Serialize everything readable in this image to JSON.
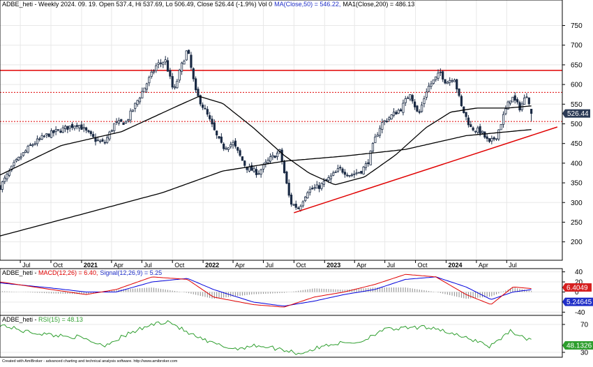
{
  "chart_data": {
    "type": "candlestick",
    "price_panel": {
      "header": {
        "ticker": "ADBE_heti - Weekly 2024. 09. 19. Open 537.4, Hi 537.69, Lo 506.49, Close 526.44 (-1.9%) Vol 0",
        "ma50": "MA(Close,50) = 546.22,",
        "ma200": "MA1(Close,200) = 486.13"
      },
      "y_ticks": [
        200,
        250,
        300,
        350,
        400,
        450,
        500,
        550,
        600,
        650,
        700,
        750
      ],
      "ylim": [
        155,
        790
      ],
      "last_price_label": "526.44",
      "last_price": 526.44,
      "horizontal_lines": [
        {
          "value": 636,
          "style": "solid",
          "color": "#e00000"
        },
        {
          "value": 580,
          "style": "dotted",
          "color": "#e00000"
        },
        {
          "value": 506,
          "style": "dotted",
          "color": "#e00000"
        }
      ],
      "trendline": {
        "from": [
          "2022-10-01",
          274
        ],
        "to": [
          "2024-11-30",
          492
        ],
        "color": "#e00000"
      },
      "price_keypoints": [
        [
          "2020-05-01",
          340
        ],
        [
          "2020-06-15",
          400
        ],
        [
          "2020-08-01",
          445
        ],
        [
          "2020-09-15",
          470
        ],
        [
          "2020-11-01",
          485
        ],
        [
          "2020-12-20",
          500
        ],
        [
          "2021-02-10",
          460
        ],
        [
          "2021-03-10",
          450
        ],
        [
          "2021-04-10",
          500
        ],
        [
          "2021-05-15",
          505
        ],
        [
          "2021-07-01",
          580
        ],
        [
          "2021-08-15",
          650
        ],
        [
          "2021-09-10",
          660
        ],
        [
          "2021-10-05",
          580
        ],
        [
          "2021-10-25",
          640
        ],
        [
          "2021-11-15",
          690
        ],
        [
          "2021-12-10",
          580
        ],
        [
          "2022-01-15",
          520
        ],
        [
          "2022-02-10",
          470
        ],
        [
          "2022-03-01",
          440
        ],
        [
          "2022-04-01",
          450
        ],
        [
          "2022-05-10",
          390
        ],
        [
          "2022-06-15",
          375
        ],
        [
          "2022-07-20",
          410
        ],
        [
          "2022-08-20",
          430
        ],
        [
          "2022-09-20",
          300
        ],
        [
          "2022-10-15",
          285
        ],
        [
          "2022-11-10",
          330
        ],
        [
          "2022-12-15",
          340
        ],
        [
          "2023-01-20",
          365
        ],
        [
          "2023-02-15",
          385
        ],
        [
          "2023-03-20",
          370
        ],
        [
          "2023-04-20",
          380
        ],
        [
          "2023-05-10",
          400
        ],
        [
          "2023-06-01",
          460
        ],
        [
          "2023-06-20",
          500
        ],
        [
          "2023-07-20",
          520
        ],
        [
          "2023-08-20",
          540
        ],
        [
          "2023-09-15",
          580
        ],
        [
          "2023-10-10",
          520
        ],
        [
          "2023-11-05",
          590
        ],
        [
          "2023-11-25",
          610
        ],
        [
          "2023-12-15",
          630
        ],
        [
          "2024-01-01",
          605
        ],
        [
          "2024-01-25",
          620
        ],
        [
          "2024-02-15",
          545
        ],
        [
          "2024-03-15",
          490
        ],
        [
          "2024-04-15",
          480
        ],
        [
          "2024-05-10",
          450
        ],
        [
          "2024-06-01",
          470
        ],
        [
          "2024-06-25",
          530
        ],
        [
          "2024-07-15",
          570
        ],
        [
          "2024-08-10",
          540
        ],
        [
          "2024-08-30",
          575
        ],
        [
          "2024-09-19",
          526
        ]
      ],
      "ma50_keypoints": [
        [
          "2020-05-01",
          370
        ],
        [
          "2020-11-01",
          445
        ],
        [
          "2021-05-01",
          480
        ],
        [
          "2021-10-15",
          545
        ],
        [
          "2021-12-20",
          570
        ],
        [
          "2022-03-01",
          552
        ],
        [
          "2022-06-01",
          490
        ],
        [
          "2022-09-01",
          420
        ],
        [
          "2022-11-15",
          375
        ],
        [
          "2023-02-01",
          345
        ],
        [
          "2023-05-01",
          365
        ],
        [
          "2023-08-01",
          420
        ],
        [
          "2023-11-01",
          490
        ],
        [
          "2024-01-15",
          530
        ],
        [
          "2024-04-01",
          540
        ],
        [
          "2024-07-01",
          540
        ],
        [
          "2024-09-19",
          546
        ]
      ],
      "ma200_keypoints": [
        [
          "2020-05-01",
          215
        ],
        [
          "2021-01-01",
          270
        ],
        [
          "2021-09-01",
          325
        ],
        [
          "2022-03-01",
          380
        ],
        [
          "2022-09-01",
          405
        ],
        [
          "2023-03-01",
          418
        ],
        [
          "2023-09-01",
          435
        ],
        [
          "2024-03-01",
          470
        ],
        [
          "2024-09-19",
          486
        ]
      ]
    },
    "x_axis": {
      "range": [
        "2020-05-01",
        "2024-12-15"
      ],
      "labels": [
        {
          "text": "Jul",
          "date": "2020-07-01"
        },
        {
          "text": "Oct",
          "date": "2020-10-01"
        },
        {
          "text": "2021",
          "date": "2021-01-01",
          "bold": true
        },
        {
          "text": "Apr",
          "date": "2021-04-01"
        },
        {
          "text": "Jul",
          "date": "2021-07-01"
        },
        {
          "text": "Oct",
          "date": "2021-10-01"
        },
        {
          "text": "2022",
          "date": "2022-01-01",
          "bold": true
        },
        {
          "text": "Apr",
          "date": "2022-04-01"
        },
        {
          "text": "Jul",
          "date": "2022-07-01"
        },
        {
          "text": "Oct",
          "date": "2022-10-01"
        },
        {
          "text": "2023",
          "date": "2023-01-01",
          "bold": true
        },
        {
          "text": "Apr",
          "date": "2023-04-01"
        },
        {
          "text": "Jul",
          "date": "2023-07-01"
        },
        {
          "text": "Oct",
          "date": "2023-10-01"
        },
        {
          "text": "2024",
          "date": "2024-01-01",
          "bold": true
        },
        {
          "text": "Apr",
          "date": "2024-04-01"
        },
        {
          "text": "Jul",
          "date": "2024-07-01"
        }
      ]
    },
    "macd_panel": {
      "header": {
        "ticker": "ADBE_heti - ",
        "macd": "MACD(12,26) = 6.40,",
        "signal": "Signal(12,26,9) = 5.25"
      },
      "y_ticks": [
        -40,
        -20,
        0,
        20,
        40
      ],
      "ylim": [
        -45,
        45
      ],
      "macd_label": "6.4049",
      "signal_label": "5.24645",
      "macd_keypoints": [
        [
          "2020-05-01",
          20
        ],
        [
          "2020-10-01",
          5
        ],
        [
          "2021-01-15",
          -5
        ],
        [
          "2021-04-15",
          5
        ],
        [
          "2021-08-01",
          30
        ],
        [
          "2021-11-15",
          25
        ],
        [
          "2022-02-01",
          -10
        ],
        [
          "2022-06-01",
          -25
        ],
        [
          "2022-09-01",
          -30
        ],
        [
          "2022-12-01",
          -10
        ],
        [
          "2023-03-01",
          0
        ],
        [
          "2023-06-01",
          15
        ],
        [
          "2023-09-01",
          35
        ],
        [
          "2023-12-01",
          30
        ],
        [
          "2024-03-01",
          -5
        ],
        [
          "2024-05-15",
          -25
        ],
        [
          "2024-07-20",
          10
        ],
        [
          "2024-09-19",
          6.4
        ]
      ],
      "signal_keypoints": [
        [
          "2020-05-01",
          18
        ],
        [
          "2020-10-01",
          8
        ],
        [
          "2021-01-15",
          0
        ],
        [
          "2021-04-15",
          0
        ],
        [
          "2021-08-01",
          20
        ],
        [
          "2021-11-15",
          27
        ],
        [
          "2022-02-01",
          5
        ],
        [
          "2022-06-01",
          -20
        ],
        [
          "2022-09-01",
          -28
        ],
        [
          "2022-12-01",
          -18
        ],
        [
          "2023-03-01",
          -5
        ],
        [
          "2023-06-01",
          5
        ],
        [
          "2023-09-01",
          25
        ],
        [
          "2023-12-01",
          30
        ],
        [
          "2024-03-01",
          10
        ],
        [
          "2024-05-15",
          -15
        ],
        [
          "2024-07-20",
          0
        ],
        [
          "2024-09-19",
          5.25
        ]
      ]
    },
    "rsi_panel": {
      "header": {
        "ticker": "ADBE_heti - ",
        "rsi": "RSI(15) = 48.13"
      },
      "y_ticks": [
        30,
        70
      ],
      "ylim": [
        24,
        82
      ],
      "rsi_label": "48.1326",
      "rsi_keypoints": [
        [
          "2020-05-01",
          70
        ],
        [
          "2020-07-15",
          60
        ],
        [
          "2020-10-01",
          55
        ],
        [
          "2020-12-20",
          52
        ],
        [
          "2021-03-10",
          40
        ],
        [
          "2021-05-15",
          55
        ],
        [
          "2021-08-01",
          70
        ],
        [
          "2021-09-20",
          75
        ],
        [
          "2021-11-15",
          58
        ],
        [
          "2022-01-15",
          45
        ],
        [
          "2022-04-01",
          35
        ],
        [
          "2022-06-15",
          40
        ],
        [
          "2022-09-20",
          32
        ],
        [
          "2022-10-15",
          28
        ],
        [
          "2023-01-20",
          42
        ],
        [
          "2023-04-20",
          45
        ],
        [
          "2023-06-20",
          62
        ],
        [
          "2023-09-15",
          65
        ],
        [
          "2023-11-25",
          66
        ],
        [
          "2024-02-15",
          52
        ],
        [
          "2024-04-15",
          45
        ],
        [
          "2024-05-10",
          38
        ],
        [
          "2024-07-15",
          62
        ],
        [
          "2024-08-10",
          52
        ],
        [
          "2024-09-19",
          48.13
        ]
      ]
    },
    "footer": "Created with AmiBroker - advanced charting and technical analysis software. http://www.amibroker.com",
    "colors": {
      "price": "#1a2a44",
      "ma": "#000000",
      "red": "#e00000",
      "macd": "#e00000",
      "signal": "#0000dd",
      "rsi": "#2e9e2e",
      "grid": "#e8e8e8",
      "last_price_bg": "#2b3a55",
      "macd_label_bg": "#d62020",
      "signal_label_bg": "#1f2ec8",
      "rsi_label_bg": "#2e9e2e"
    }
  }
}
